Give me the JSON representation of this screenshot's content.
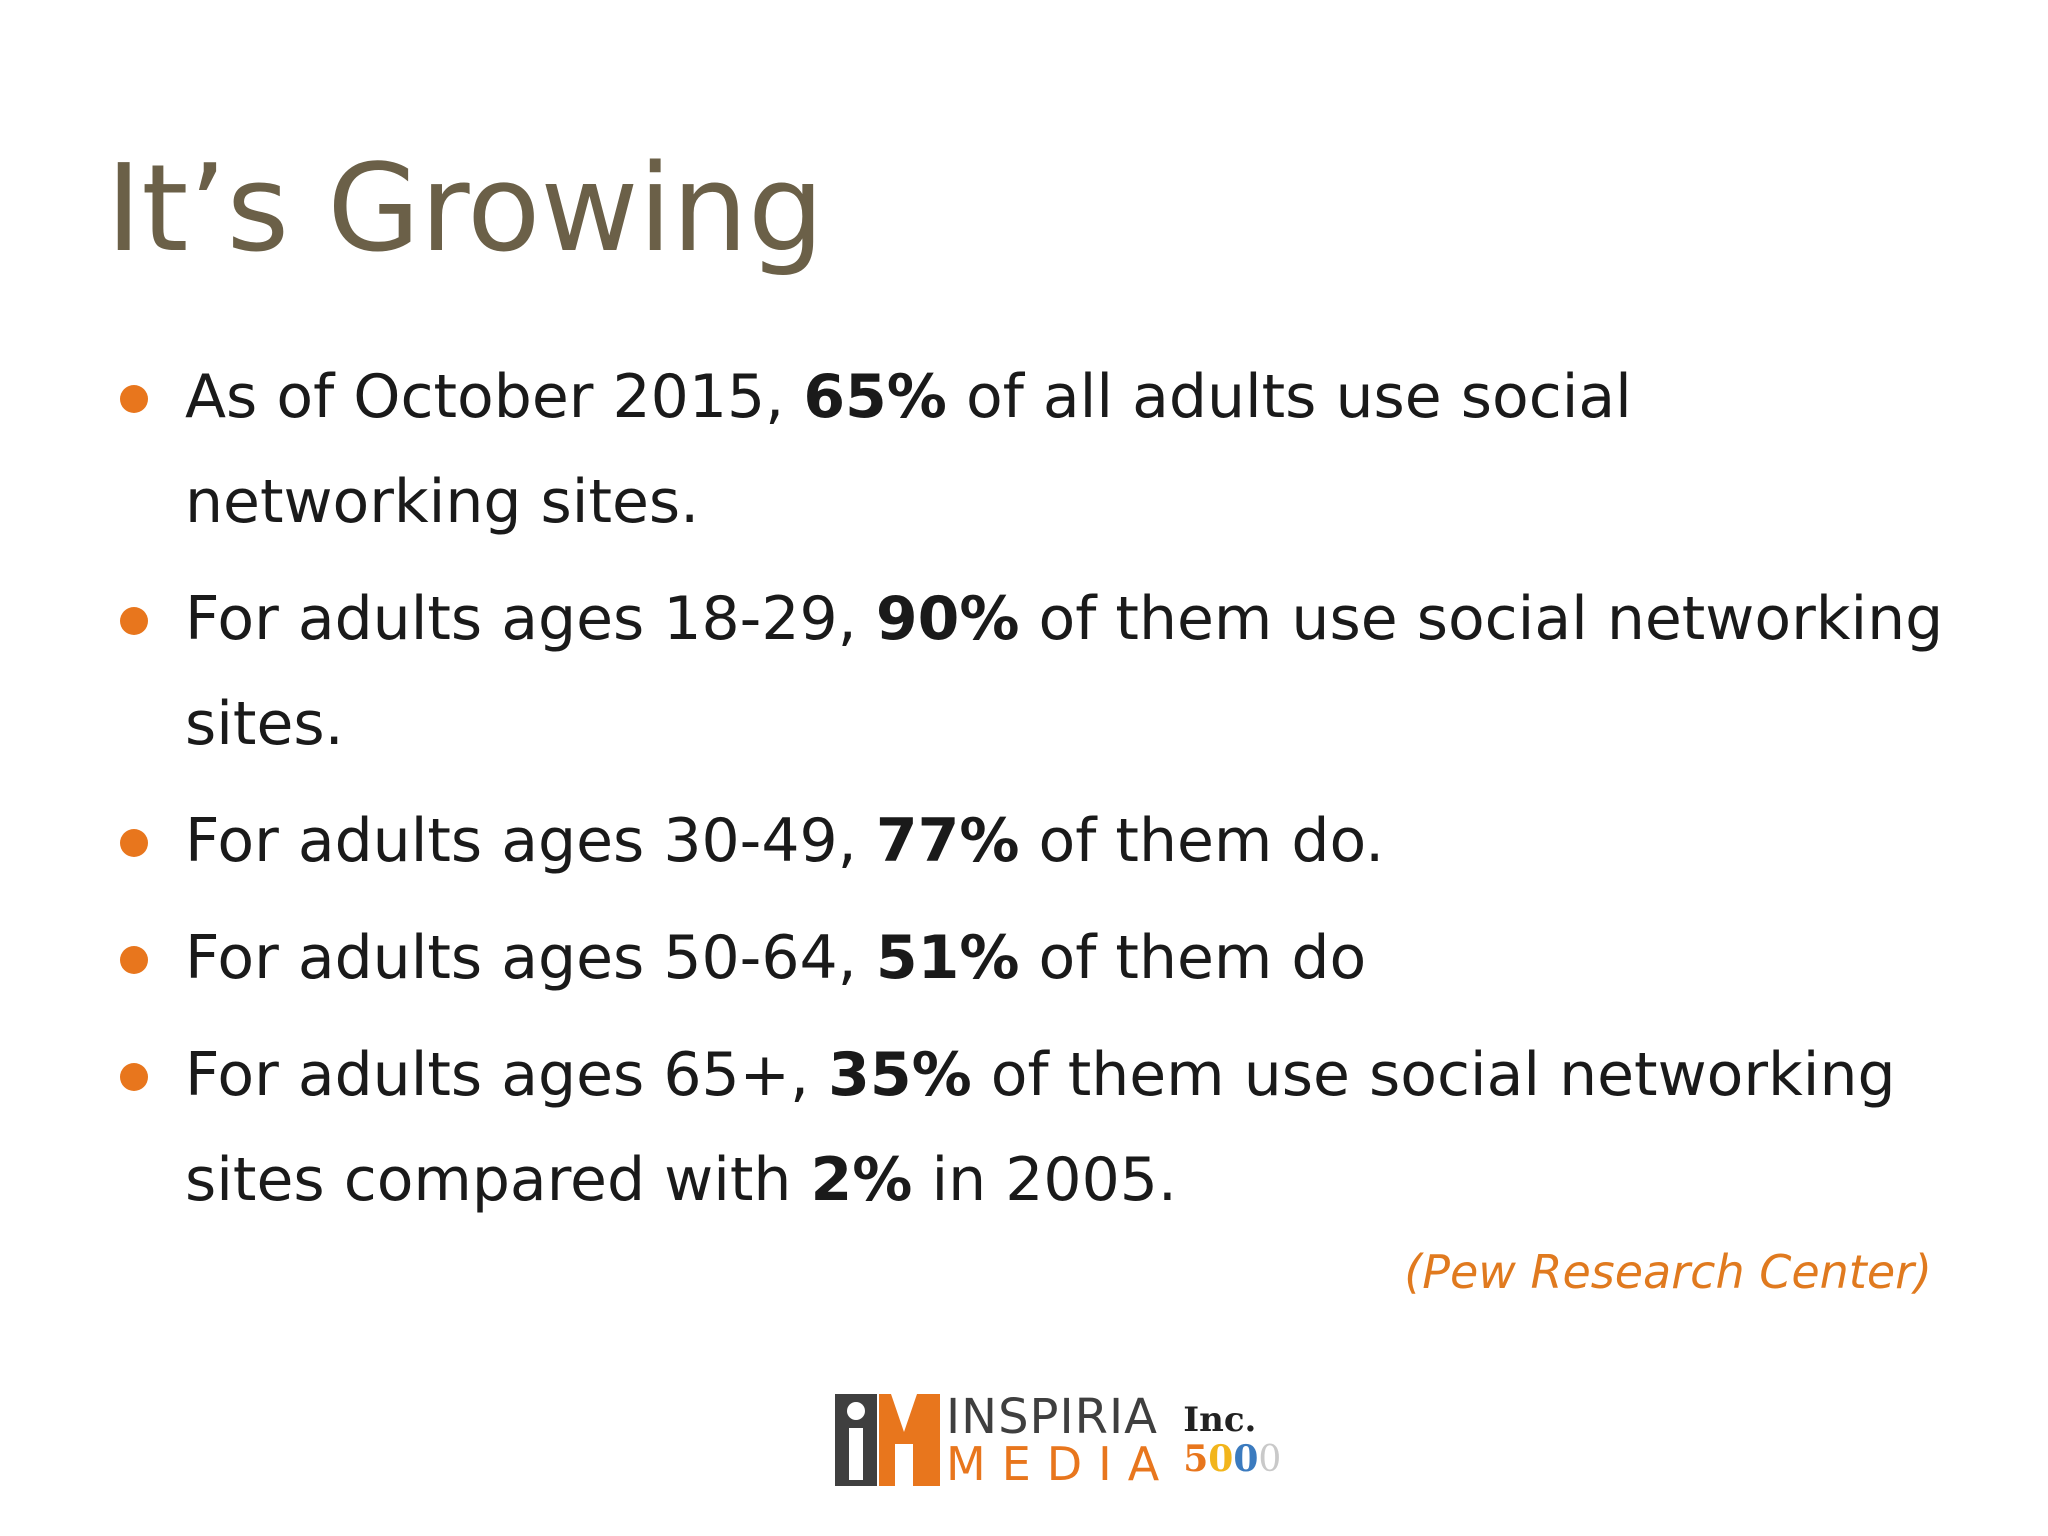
{
  "slide": {
    "title": "It’s Growing",
    "bullets": [
      {
        "before": "As of October 2015, ",
        "bold": "65%",
        "after": " of all adults use social networking sites."
      },
      {
        "before": "For adults ages 18-29, ",
        "bold": "90%",
        "after": " of them use social networking sites."
      },
      {
        "before": "For adults ages 30-49, ",
        "bold": "77%",
        "after": " of them do."
      },
      {
        "before": "For adults ages 50-64, ",
        "bold": "51%",
        "after": " of them do"
      },
      {
        "before": "For adults ages 65+, ",
        "bold": "35%",
        "after": " of them use social networking sites compared with ",
        "bold2": "2%",
        "after2": " in 2005."
      }
    ],
    "source": "(Pew Research Center)"
  },
  "logo": {
    "line1": "INSPIRIA",
    "line2": "MEDIA",
    "inc_word": "Inc.",
    "inc_digits": [
      "5",
      "0",
      "0",
      "0"
    ]
  },
  "colors": {
    "title": "#6b6048",
    "accent_orange": "#e8761d",
    "text": "#1a1a1a"
  }
}
